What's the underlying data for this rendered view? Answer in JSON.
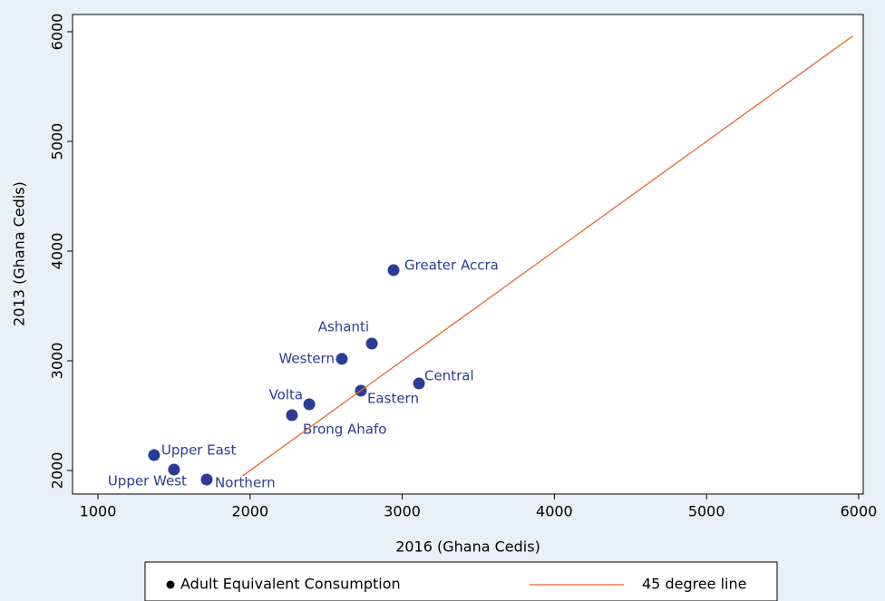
{
  "chart_data": {
    "type": "scatter",
    "x_label": "2016 (Ghana Cedis)",
    "y_label": "2013 (Ghana Cedis)",
    "xlim": [
      833,
      6030
    ],
    "ylim": [
      1785,
      6157
    ],
    "xticks": [
      1000,
      2000,
      3000,
      4000,
      5000,
      6000
    ],
    "yticks": [
      2000,
      3000,
      4000,
      5000,
      6000
    ],
    "legend": "bottom",
    "series": [
      {
        "name": "Adult Equivalent Consumption",
        "type": "scatter",
        "color": "#2b3c96",
        "point_labels": [
          "Greater Accra",
          "Ashanti",
          "Western",
          "Central",
          "Eastern",
          "Volta",
          "Brong Ahafo",
          "Upper East",
          "Upper West",
          "Northern"
        ],
        "x": [
          2943,
          2800,
          2603,
          3110,
          2728,
          2389,
          2275,
          1369,
          1500,
          1715
        ],
        "values": [
          3826,
          3157,
          3017,
          2793,
          2727,
          2603,
          2504,
          2140,
          2008,
          1917
        ]
      },
      {
        "name": "45 degree line",
        "type": "line",
        "color": "#e8662e",
        "x": [
          1950,
          5960
        ],
        "values": [
          1950,
          5960
        ]
      }
    ]
  }
}
